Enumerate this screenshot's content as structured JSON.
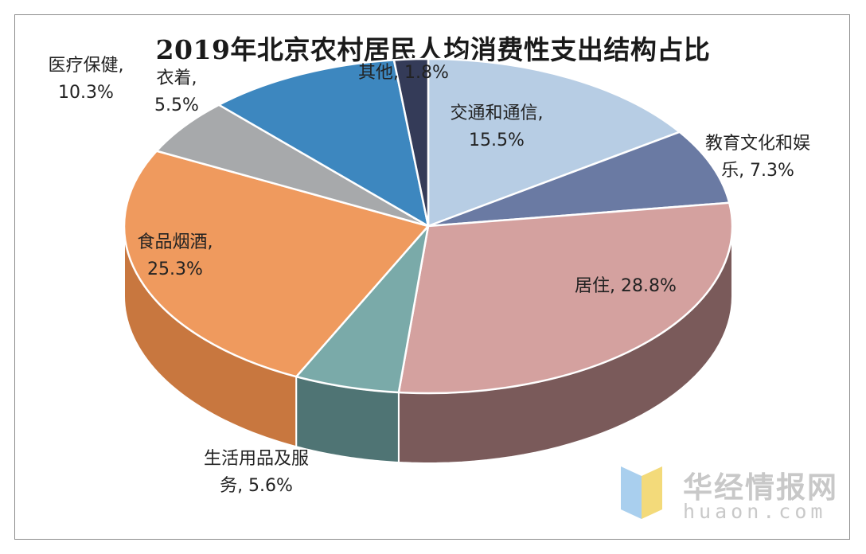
{
  "chart_data": {
    "type": "pie",
    "title": "2019年北京农村居民人均消费性支出结构占比",
    "unit": "%",
    "slices": [
      {
        "label_lines": [
          "交通和通信,",
          "15.5%"
        ],
        "value": 15.5,
        "top": "#b7cde4",
        "side": "#7f97b0"
      },
      {
        "label_lines": [
          "教育文化和娱",
          "乐, 7.3%"
        ],
        "value": 7.3,
        "top": "#6a7aa3",
        "side": "#4a5679"
      },
      {
        "label_lines": [
          "居住, 28.8%"
        ],
        "value": 28.8,
        "top": "#d4a19f",
        "side": "#7a5a5a"
      },
      {
        "label_lines": [
          "生活用品及服",
          "务, 5.6%"
        ],
        "value": 5.6,
        "top": "#7aaaa9",
        "side": "#4f7474"
      },
      {
        "label_lines": [
          "食品烟酒,",
          "25.3%"
        ],
        "value": 25.3,
        "top": "#ef9a5e",
        "side": "#c8773f"
      },
      {
        "label_lines": [
          "衣着,",
          "5.5%"
        ],
        "value": 5.5,
        "top": "#a7a9ab",
        "side": "#77797b"
      },
      {
        "label_lines": [
          "医疗保健,",
          "10.3%"
        ],
        "value": 10.3,
        "top": "#3d87bf",
        "side": "#2b628c"
      },
      {
        "label_lines": [
          "其他, 1.8%"
        ],
        "value": 1.8,
        "top": "#343b58",
        "side": "#23283d"
      }
    ]
  },
  "watermark": {
    "brand": "华经情报网",
    "url": "huaon.com",
    "logo_colors": [
      "#a9cfee",
      "#f3da7a"
    ]
  }
}
